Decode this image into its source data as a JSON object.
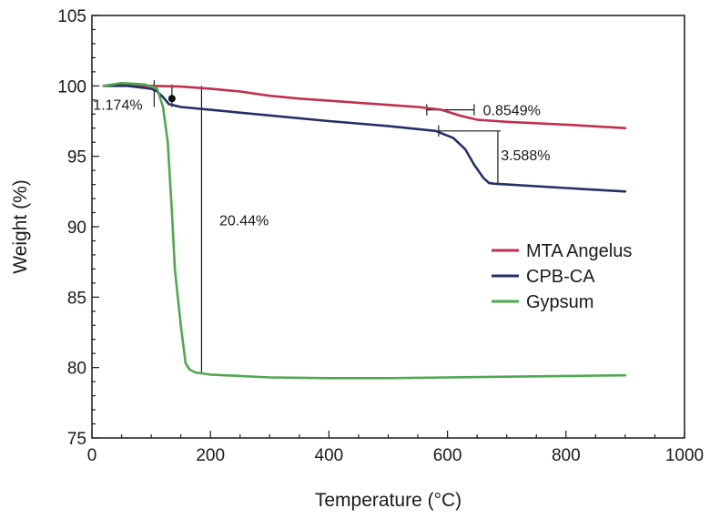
{
  "chart_data": {
    "type": "line",
    "title": "",
    "xlabel": "Temperature (°C)",
    "ylabel": "Weight (%)",
    "xlim": [
      0,
      1000
    ],
    "ylim": [
      75,
      105
    ],
    "xticks": [
      0,
      200,
      400,
      600,
      800,
      1000
    ],
    "yticks": [
      75,
      80,
      85,
      90,
      95,
      100,
      105
    ],
    "grid": false,
    "legend_position": "right",
    "series": [
      {
        "name": "MTA Angelus",
        "color": "#c0304f",
        "x": [
          20,
          60,
          100,
          150,
          200,
          250,
          300,
          350,
          400,
          450,
          500,
          550,
          590,
          620,
          650,
          700,
          800,
          900
        ],
        "y": [
          100.0,
          100.05,
          100.0,
          99.95,
          99.8,
          99.6,
          99.3,
          99.1,
          98.95,
          98.8,
          98.65,
          98.5,
          98.3,
          97.9,
          97.6,
          97.45,
          97.25,
          97.0
        ]
      },
      {
        "name": "CPB-CA",
        "color": "#252f68",
        "x": [
          20,
          60,
          100,
          110,
          120,
          130,
          150,
          200,
          300,
          400,
          500,
          580,
          610,
          630,
          645,
          660,
          670,
          680,
          700,
          800,
          900
        ],
        "y": [
          100.0,
          100.0,
          99.8,
          99.6,
          99.2,
          98.7,
          98.5,
          98.3,
          97.9,
          97.5,
          97.15,
          96.8,
          96.3,
          95.5,
          94.4,
          93.5,
          93.1,
          93.05,
          93.0,
          92.75,
          92.5
        ]
      },
      {
        "name": "Gypsum",
        "color": "#4fa84f",
        "x": [
          20,
          50,
          90,
          110,
          120,
          128,
          135,
          140,
          150,
          158,
          165,
          175,
          200,
          300,
          400,
          500,
          600,
          700,
          800,
          900
        ],
        "y": [
          100.0,
          100.2,
          100.1,
          99.8,
          98.5,
          96.0,
          91.0,
          87.0,
          83.0,
          80.3,
          79.85,
          79.65,
          79.5,
          79.3,
          79.25,
          79.25,
          79.3,
          79.35,
          79.4,
          79.45
        ]
      }
    ],
    "annotations": [
      {
        "text": "1.174%",
        "x": 2,
        "y": 98.7
      },
      {
        "text": "0.8549%",
        "x": 660,
        "y": 98.3
      },
      {
        "text": "3.588%",
        "x": 690,
        "y": 95.1
      },
      {
        "text": "20.44%",
        "x": 215,
        "y": 90.5
      }
    ],
    "marker_lines": [
      {
        "type": "v",
        "x": 105,
        "y1": 98.5,
        "y2": 100.4
      },
      {
        "type": "v",
        "x": 135,
        "y1": 98.5,
        "y2": 100.1
      },
      {
        "type": "v",
        "x": 185,
        "y1": 79.6,
        "y2": 100.0
      },
      {
        "type": "h",
        "x1": 565,
        "x2": 645,
        "y": 98.3
      },
      {
        "type": "v",
        "x": 565,
        "y1": 97.9,
        "y2": 98.7
      },
      {
        "type": "v",
        "x": 645,
        "y1": 97.9,
        "y2": 98.7
      },
      {
        "type": "h",
        "x1": 585,
        "x2": 690,
        "y": 96.8
      },
      {
        "type": "v",
        "x": 585,
        "y1": 96.4,
        "y2": 97.2
      },
      {
        "type": "v",
        "x": 685,
        "y1": 93.1,
        "y2": 96.8
      }
    ],
    "marker_points": [
      {
        "x": 135,
        "y": 99.1
      }
    ]
  }
}
